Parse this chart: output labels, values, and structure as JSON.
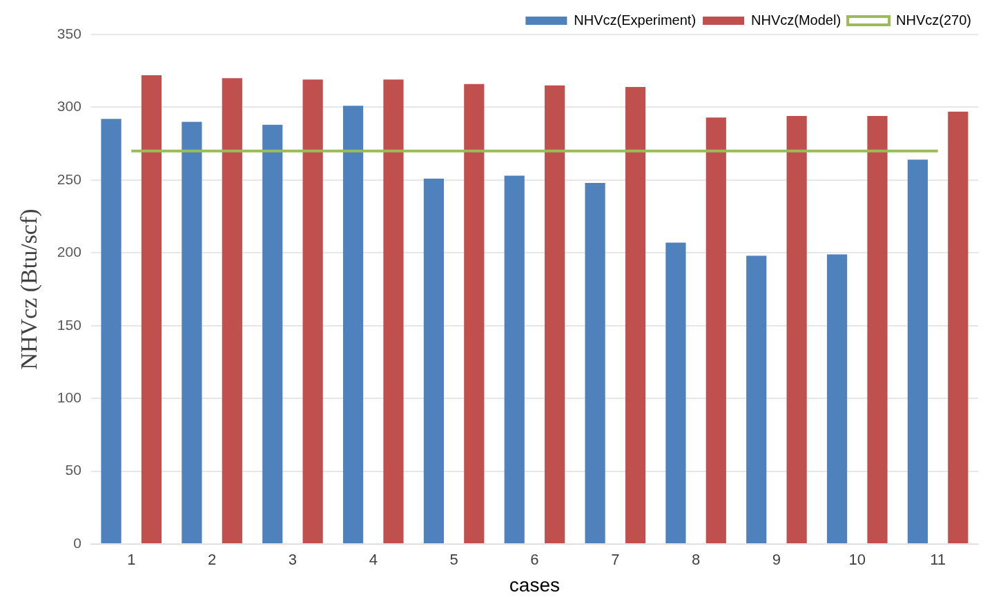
{
  "chart_data": {
    "type": "bar",
    "xlabel": "cases",
    "ylabel": "NHVcz (Btu/scf)",
    "categories": [
      "1",
      "2",
      "3",
      "4",
      "5",
      "6",
      "7",
      "8",
      "9",
      "10",
      "11"
    ],
    "series": [
      {
        "name": "NHVcz(Experiment)",
        "color": "#4f81bd",
        "values": [
          292,
          290,
          288,
          301,
          251,
          253,
          248,
          207,
          198,
          199,
          264
        ]
      },
      {
        "name": "NHVcz(Model)",
        "color": "#c0504d",
        "values": [
          322,
          320,
          319,
          319,
          316,
          315,
          314,
          293,
          294,
          294,
          297
        ]
      },
      {
        "name": "NHVcz(270)",
        "type": "line",
        "color": "#9bbb59",
        "marker": "none",
        "values": [
          270,
          270,
          270,
          270,
          270,
          270,
          270,
          270,
          270,
          270,
          270
        ]
      }
    ],
    "ylim": [
      0,
      350
    ],
    "yticks": [
      0,
      50,
      100,
      150,
      200,
      250,
      300,
      350
    ],
    "grid": "y",
    "legend": "top right"
  }
}
